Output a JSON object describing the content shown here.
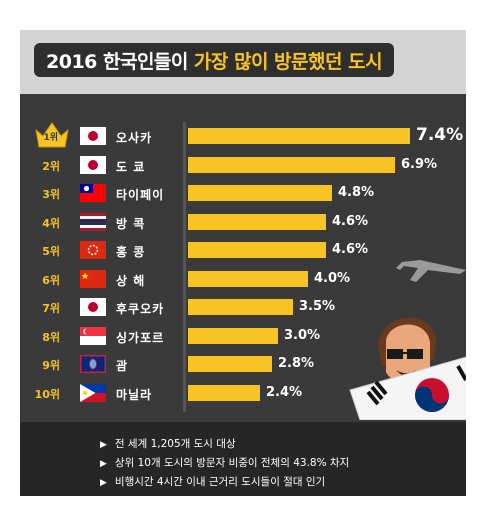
{
  "title": {
    "prefix": "2016 한국인들이",
    "highlight": "가장 많이 방문했던 도시"
  },
  "chart_data": {
    "type": "bar",
    "orientation": "horizontal",
    "unit": "%",
    "categories": [
      "오사카",
      "도 쿄",
      "타이페이",
      "방 콕",
      "홍 콩",
      "상 해",
      "후쿠오카",
      "싱가포르",
      "괌",
      "마닐라"
    ],
    "ranks": [
      "1위",
      "2위",
      "3위",
      "4위",
      "5위",
      "6위",
      "7위",
      "8위",
      "9위",
      "10위"
    ],
    "flags": [
      "japan",
      "japan",
      "taiwan",
      "thailand",
      "hong-kong",
      "china",
      "japan",
      "singapore",
      "guam",
      "philippines"
    ],
    "values": [
      7.4,
      6.9,
      4.8,
      4.6,
      4.6,
      4.0,
      3.5,
      3.0,
      2.8,
      2.4
    ],
    "value_labels": [
      "7.4%",
      "6.9%",
      "4.8%",
      "4.6%",
      "4.6%",
      "4.0%",
      "3.5%",
      "3.0%",
      "2.8%",
      "2.4%"
    ],
    "xlim": [
      0,
      8
    ]
  },
  "notes": [
    "전 세계 1,205개 도시 대상",
    "상위 10개 도시의 방문자 비중이 전체의 43.8% 차지",
    "비행시간 4시간 이내 근거리 도시들이 절대 인기"
  ],
  "colors": {
    "background": "#3a3a3a",
    "bar": "#f8c323",
    "accent": "#f8c323",
    "notes_bg": "#262626"
  }
}
